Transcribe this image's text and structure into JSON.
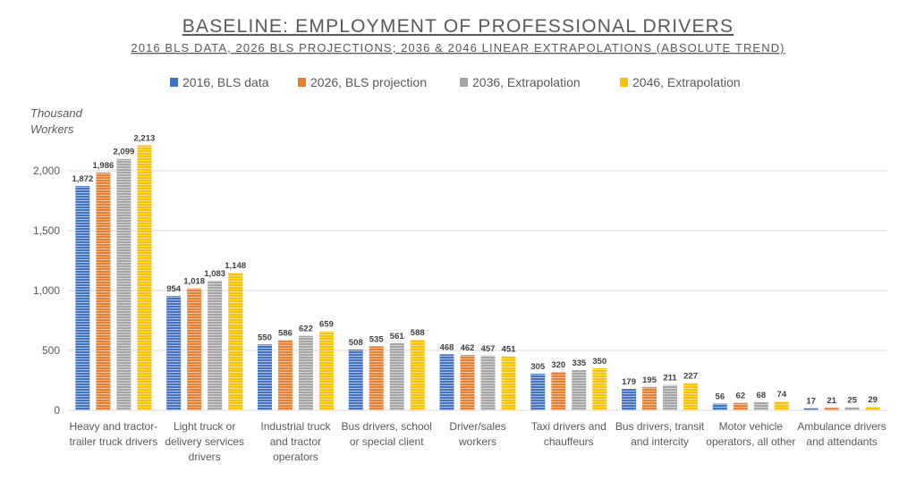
{
  "chart_data": {
    "type": "bar",
    "title": "BASELINE: EMPLOYMENT OF PROFESSIONAL DRIVERS",
    "subtitle": "2016 BLS DATA, 2026 BLS PROJECTIONS; 2036 & 2046 LINEAR EXTRAPOLATIONS (ABSOLUTE TREND)",
    "ylabel": [
      "Thousand",
      "Workers"
    ],
    "ylim": [
      0,
      2500
    ],
    "yticks": [
      0,
      500,
      1000,
      1500,
      2000
    ],
    "ytick_labels": [
      "0",
      "500",
      "1,000",
      "1,500",
      "2,000"
    ],
    "grid": true,
    "legend_position": "top",
    "categories": [
      [
        "Heavy and tractor-",
        "trailer truck drivers"
      ],
      [
        "Light truck or",
        "delivery services",
        "drivers"
      ],
      [
        "Industrial truck",
        "and tractor",
        "operators"
      ],
      [
        "Bus drivers, school",
        "or special client"
      ],
      [
        "Driver/sales",
        "workers"
      ],
      [
        "Taxi drivers and",
        "chauffeurs"
      ],
      [
        "Bus drivers, transit",
        "and intercity"
      ],
      [
        "Motor vehicle",
        "operators, all other"
      ],
      [
        "Ambulance drivers",
        "and attendants"
      ]
    ],
    "series": [
      {
        "name": "2016, BLS data",
        "color": "#4472c4",
        "values": [
          1872,
          954,
          550,
          508,
          468,
          305,
          179,
          56,
          17
        ],
        "labels": [
          "1,872",
          "954",
          "550",
          "508",
          "468",
          "305",
          "179",
          "56",
          "17"
        ]
      },
      {
        "name": "2026, BLS projection",
        "color": "#ed7d31",
        "values": [
          1986,
          1018,
          586,
          535,
          462,
          320,
          195,
          62,
          21
        ],
        "labels": [
          "1,986",
          "1,018",
          "586",
          "535",
          "462",
          "320",
          "195",
          "62",
          "21"
        ]
      },
      {
        "name": "2036, Extrapolation",
        "color": "#a5a5a5",
        "values": [
          2099,
          1083,
          622,
          561,
          457,
          335,
          211,
          68,
          25
        ],
        "labels": [
          "2,099",
          "1,083",
          "622",
          "561",
          "457",
          "335",
          "211",
          "68",
          "25"
        ]
      },
      {
        "name": "2046, Extrapolation",
        "color": "#ffc000",
        "values": [
          2213,
          1148,
          659,
          588,
          451,
          350,
          227,
          74,
          29
        ],
        "labels": [
          "2,213",
          "1,148",
          "659",
          "588",
          "451",
          "350",
          "227",
          "74",
          "29"
        ]
      }
    ]
  }
}
